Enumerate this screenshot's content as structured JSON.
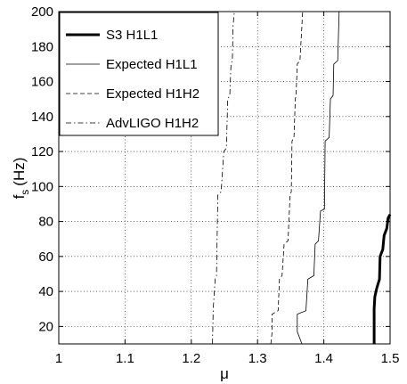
{
  "chart_data": {
    "type": "line",
    "title": "",
    "xlabel": "μ",
    "ylabel_main": "f",
    "ylabel_sub": "s",
    "ylabel_unit": "(Hz)",
    "xlim": [
      1,
      1.5
    ],
    "ylim": [
      10,
      200
    ],
    "xticks": [
      1,
      1.1,
      1.2,
      1.3,
      1.4,
      1.5
    ],
    "xtick_labels": [
      "1",
      "1.1",
      "1.2",
      "1.3",
      "1.4",
      "1.5"
    ],
    "yticks": [
      20,
      40,
      60,
      80,
      100,
      120,
      140,
      160,
      180,
      200
    ],
    "ytick_labels": [
      "20",
      "40",
      "60",
      "80",
      "100",
      "120",
      "140",
      "160",
      "180",
      "200"
    ],
    "grid": true,
    "legend_position": "top-left",
    "series": [
      {
        "name": "S3 H1L1",
        "style": "solid-thick",
        "x": [
          1.476,
          1.476,
          1.477,
          1.48,
          1.484,
          1.485,
          1.489,
          1.491,
          1.495,
          1.497,
          1.5
        ],
        "y": [
          10,
          30,
          37,
          42,
          47,
          60,
          64,
          72,
          76,
          82,
          84
        ]
      },
      {
        "name": "Expected H1L1",
        "style": "solid-thin",
        "x": [
          1.367,
          1.36,
          1.36,
          1.373,
          1.376,
          1.385,
          1.387,
          1.392,
          1.395,
          1.401,
          1.402,
          1.408,
          1.41,
          1.414,
          1.415,
          1.421,
          1.423,
          1.423
        ],
        "y": [
          10,
          17,
          27,
          29,
          47,
          49,
          67,
          69,
          86,
          87,
          126,
          128,
          150,
          152,
          170,
          172,
          198,
          200
        ]
      },
      {
        "name": "Expected H1H2",
        "style": "dashed",
        "x": [
          1.32,
          1.322,
          1.322,
          1.331,
          1.333,
          1.337,
          1.34,
          1.346,
          1.349,
          1.351,
          1.352,
          1.355,
          1.357,
          1.358,
          1.36,
          1.364,
          1.367,
          1.368
        ],
        "y": [
          10,
          17,
          27,
          29,
          47,
          49,
          67,
          69,
          95,
          97,
          126,
          128,
          150,
          152,
          170,
          172,
          192,
          200
        ]
      },
      {
        "name": "AdvLIGO H1H2",
        "style": "dashdot",
        "x": [
          1.232,
          1.233,
          1.236,
          1.238,
          1.24,
          1.245,
          1.249,
          1.253,
          1.255,
          1.258,
          1.26,
          1.262,
          1.263,
          1.265
        ],
        "y": [
          10,
          30,
          47,
          49,
          95,
          97,
          120,
          122,
          150,
          152,
          170,
          172,
          192,
          200
        ]
      }
    ]
  }
}
